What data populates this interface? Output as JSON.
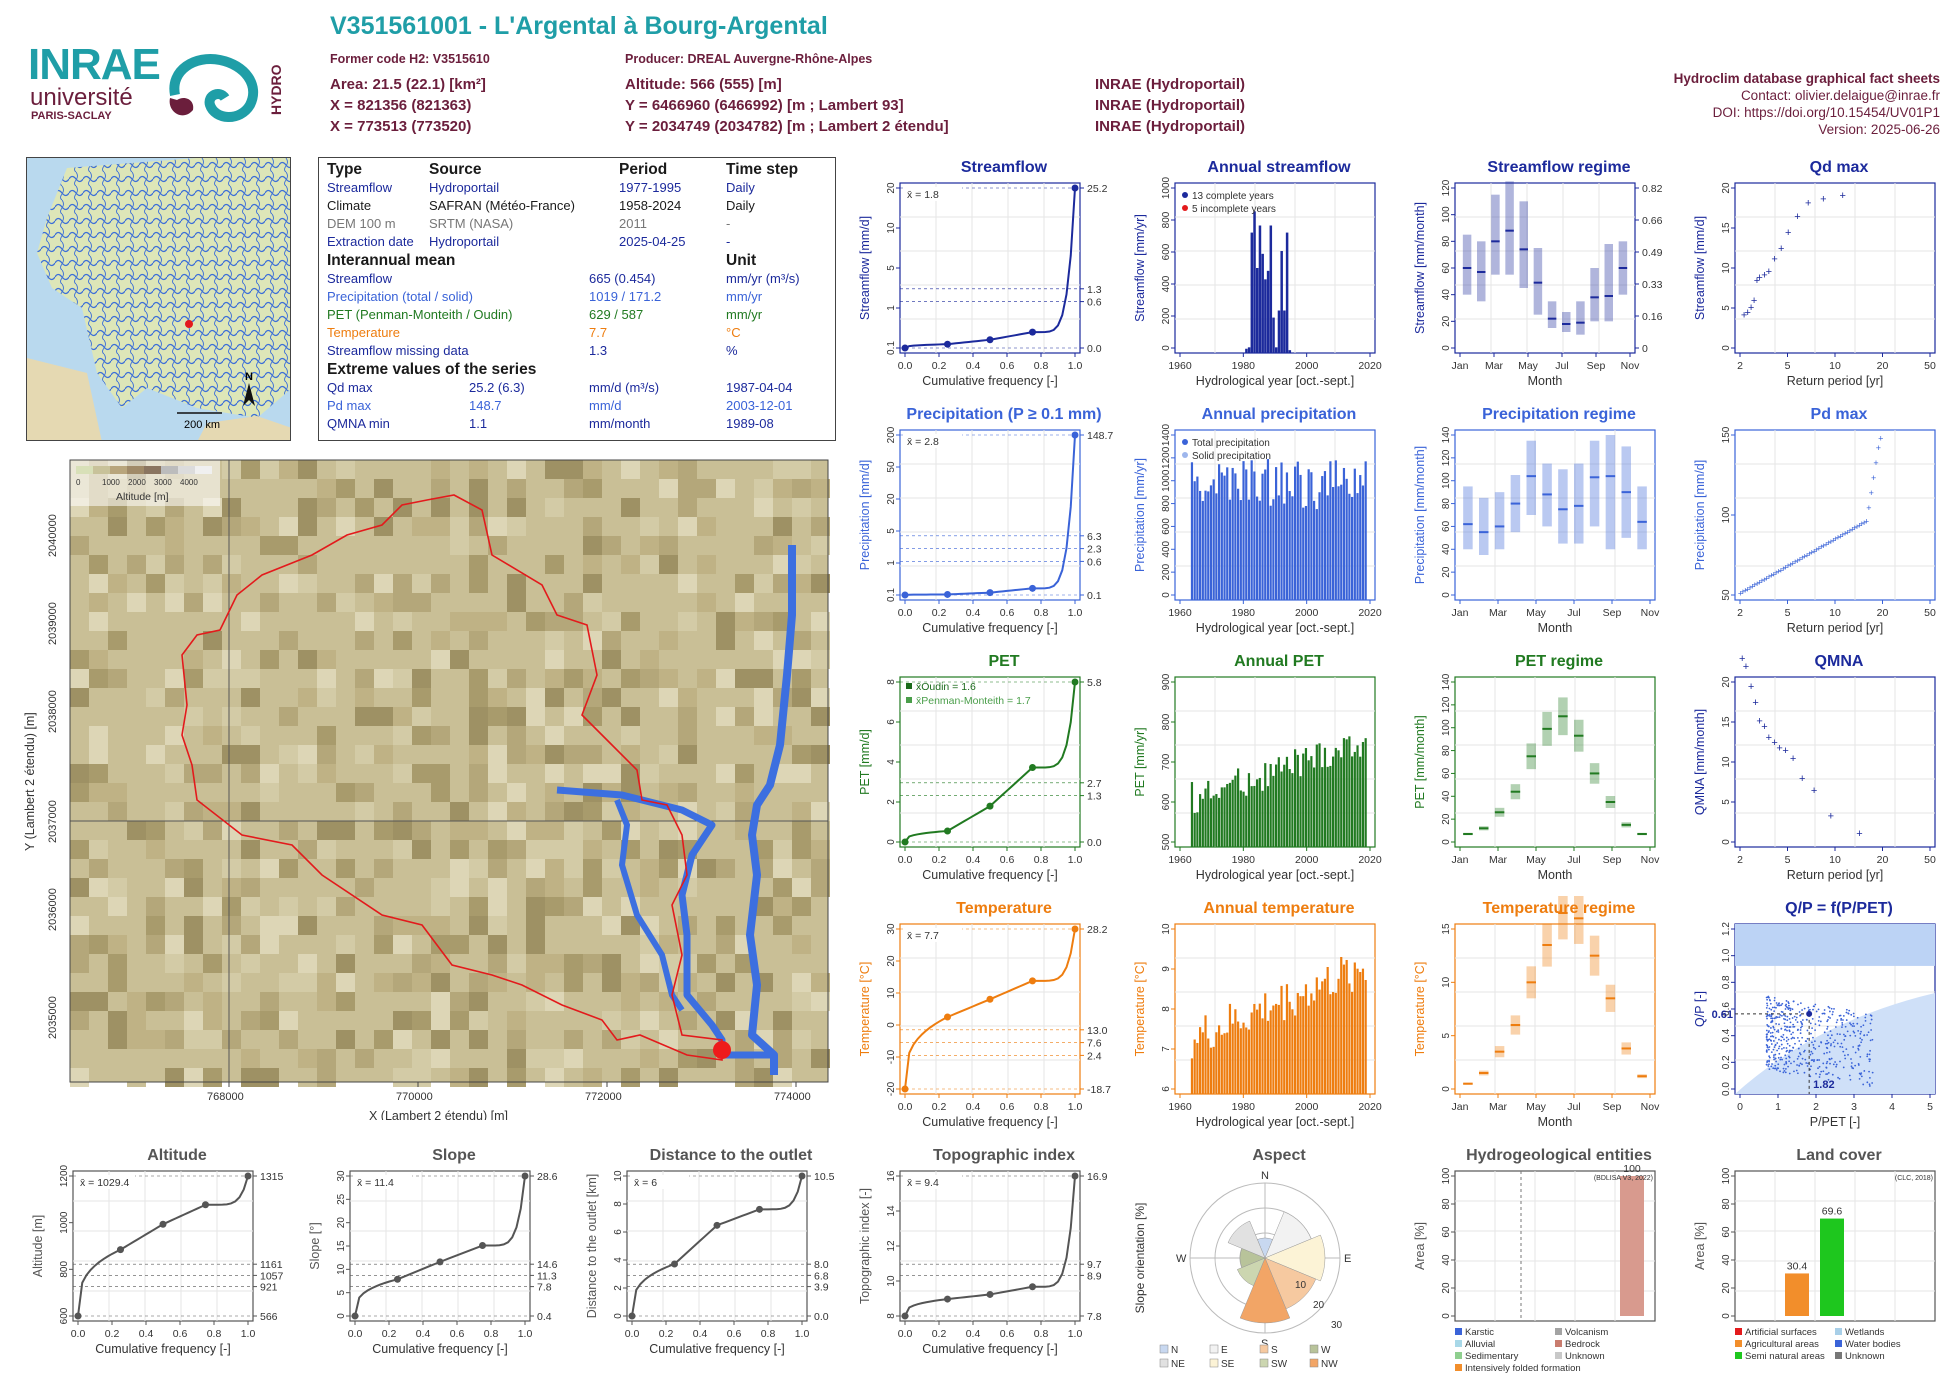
{
  "header": {
    "title": "V351561001 - L'Argental à Bourg-Argental",
    "former_code": "Former code H2: V3515610",
    "producer": "Producer: DREAL Auvergne-Rhône-Alpes",
    "area": "Area: 21.5 (22.1) [km²]",
    "x_l93": "X = 821356 (821363)",
    "x_l2e": "X = 773513 (773520)",
    "altitude": "Altitude: 566 (555) [m]",
    "y_l93": "Y = 6466960 (6466992) [m ; Lambert 93]",
    "y_l2e": "Y = 2034749 (2034782) [m ; Lambert 2 étendu]",
    "src1": "INRAE (Hydroportail)",
    "src2": "INRAE (Hydroportail)",
    "src3": "INRAE (Hydroportail)",
    "right_title": "Hydroclim database graphical fact sheets",
    "contact": "Contact: olivier.delaigue@inrae.fr",
    "doi": "DOI: https://doi.org/10.15454/UV01P1",
    "version": "Version: 2025-06-26"
  },
  "logos": {
    "inrae": "INRAE",
    "universite": "université",
    "paris_saclay": "PARIS-SACLAY",
    "hydro": "HYDRO"
  },
  "colors": {
    "teal": "#1f9ea7",
    "maroon": "#6b1e3c",
    "navy": "#1c2a9c",
    "blue": "#3a63d8",
    "green": "#217a21",
    "orange": "#ee7d0f",
    "gray": "#555555"
  },
  "minimap": {
    "scale_label": "200 km",
    "north": "N"
  },
  "info": {
    "headers": [
      "Type",
      "Source",
      "Period",
      "Time step"
    ],
    "rows": [
      {
        "type": "Streamflow",
        "source": "Hydroportail",
        "period": "1977-1995",
        "step": "Daily",
        "color": "#1c2a9c"
      },
      {
        "type": "Climate",
        "source": "SAFRAN (Météo-France)",
        "period": "1958-2024",
        "step": "Daily",
        "color": "#1a1a1a"
      },
      {
        "type": "DEM 100 m",
        "source": "SRTM (NASA)",
        "period": "2011",
        "step": "-",
        "color": "#777777"
      },
      {
        "type": "Extraction date",
        "source": "Hydroportail",
        "period": "2025-04-25",
        "step": "-",
        "color": "#1c2a9c"
      }
    ],
    "interannual_title": "Interannual mean",
    "unit_title": "Unit",
    "interannual": [
      {
        "label": "Streamflow",
        "value": "665 (0.454)",
        "unit": "mm/yr (m³/s)",
        "color": "#1c2a9c"
      },
      {
        "label": "Precipitation (total / solid)",
        "value": "1019 / 171.2",
        "unit": "mm/yr",
        "color": "#3a63d8"
      },
      {
        "label": "PET (Penman-Monteith / Oudin)",
        "value": "629 / 587",
        "unit": "mm/yr",
        "color": "#217a21"
      },
      {
        "label": "Temperature",
        "value": "7.7",
        "unit": "°C",
        "color": "#ee7d0f"
      },
      {
        "label": "Streamflow missing data",
        "value": "1.3",
        "unit": "%",
        "color": "#1c2a9c"
      }
    ],
    "extreme_title": "Extreme values of the series",
    "extremes": [
      {
        "label": "Qd max",
        "value": "25.2 (6.3)",
        "unit": "mm/d (m³/s)",
        "date": "1987-04-04",
        "color": "#1c2a9c"
      },
      {
        "label": "Pd max",
        "value": "148.7",
        "unit": "mm/d",
        "date": "2003-12-01",
        "color": "#3a63d8"
      },
      {
        "label": "QMNA min",
        "value": "1.1",
        "unit": "mm/month",
        "date": "1989-08",
        "color": "#1c2a9c"
      }
    ]
  },
  "bigmap": {
    "legend_title": "Altitude [m]",
    "legend_ticks": [
      "0",
      "1000",
      "2000",
      "3000",
      "4000"
    ],
    "xlabel": "X (Lambert 2 étendu) [m]",
    "ylabel": "Y (Lambert 2 étendu) [m]",
    "xticks": [
      "768000",
      "770000",
      "772000",
      "774000"
    ],
    "yticks": [
      "2040000",
      "2039000",
      "2038000",
      "2037000",
      "2036000",
      "2035000"
    ]
  },
  "chart_data": [
    {
      "type": "line",
      "title": "Streamflow",
      "xlabel": "Cumulative frequency [-]",
      "ylabel": "Streamflow [mm/d]",
      "mean": "x̄ = 1.8",
      "right_ticks": [
        "25.2",
        "1.3",
        "0.6",
        "0.0"
      ],
      "left_ticks": [
        "0.1",
        "1",
        "5",
        "10",
        "20"
      ],
      "x": [
        0,
        0.25,
        0.5,
        0.75,
        1.0
      ],
      "y": [
        0.0,
        0.6,
        1.3,
        2.5,
        25.2
      ],
      "xticks": [
        "0.0",
        "0.2",
        "0.4",
        "0.6",
        "0.8",
        "1.0"
      ]
    },
    {
      "type": "bar",
      "title": "Annual streamflow",
      "xlabel": "Hydrological year [oct.-sept.]",
      "ylabel": "Streamflow [mm/yr]",
      "legend": [
        "13 complete years",
        "5 incomplete years"
      ],
      "xticks": [
        "1960",
        "1980",
        "2000",
        "2020"
      ],
      "yticks": [
        "0",
        "200",
        "400",
        "600",
        "800",
        "1000"
      ],
      "ylim": [
        0,
        1200
      ],
      "x": [
        1977,
        1978,
        1979,
        1980,
        1981,
        1982,
        1983,
        1984,
        1985,
        1986,
        1987,
        1988,
        1989,
        1990,
        1991,
        1992,
        1993,
        1994,
        1995
      ],
      "values": [
        0,
        0,
        30,
        40,
        850,
        1000,
        600,
        900,
        700,
        520,
        580,
        900,
        250,
        40,
        300,
        720,
        300,
        850,
        20
      ]
    },
    {
      "type": "bar",
      "title": "Streamflow regime",
      "xlabel": "Month",
      "ylabel": "Streamflow [mm/month]",
      "categories": [
        "Jan",
        "Feb",
        "Mar",
        "Apr",
        "May",
        "Jun",
        "Jul",
        "Aug",
        "Sep",
        "Oct",
        "Nov",
        "Dec"
      ],
      "xticks": [
        "Jan",
        "Mar",
        "May",
        "Jul",
        "Sep",
        "Nov"
      ],
      "yticks": [
        "0",
        "20",
        "40",
        "60",
        "80",
        "100",
        "120"
      ],
      "right_ticks": [
        "0.82",
        "0.66",
        "0.49",
        "0.33",
        "0.16",
        "0"
      ],
      "values": [
        60,
        57,
        80,
        88,
        74,
        49,
        22,
        18,
        19,
        38,
        39,
        60
      ],
      "low": [
        40,
        35,
        55,
        55,
        45,
        25,
        15,
        12,
        10,
        20,
        20,
        40
      ],
      "high": [
        85,
        80,
        115,
        125,
        110,
        75,
        35,
        27,
        35,
        60,
        78,
        80
      ]
    },
    {
      "type": "scatter",
      "title": "Qd max",
      "xlabel": "Return period [yr]",
      "ylabel": "Streamflow [mm/d]",
      "xticks": [
        "2",
        "5",
        "10",
        "20",
        "50"
      ],
      "yticks": [
        "0",
        "5",
        "10",
        "15",
        "20"
      ],
      "x": [
        1.1,
        1.2,
        1.3,
        1.4,
        1.5,
        1.6,
        1.8,
        2.0,
        2.3,
        2.7,
        3.2,
        4.0,
        5.2,
        7.5,
        12
      ],
      "values": [
        4.2,
        4.5,
        5.1,
        6.0,
        8.5,
        8.9,
        9.2,
        9.6,
        11.2,
        12.5,
        14.5,
        16.5,
        18.2,
        18.7,
        19.1
      ]
    },
    {
      "type": "line",
      "title": "Precipitation (P ≥ 0.1 mm)",
      "xlabel": "Cumulative frequency [-]",
      "ylabel": "Precipitation [mm/d]",
      "mean": "x̄ = 2.8",
      "right_ticks": [
        "148.7",
        "6.3",
        "2.3",
        "0.6",
        "0.1"
      ],
      "left_ticks": [
        "0.1",
        "1",
        "5",
        "20",
        "50",
        "200"
      ],
      "x": [
        0,
        0.25,
        0.5,
        0.75,
        1.0
      ],
      "y": [
        0.1,
        0.6,
        2.3,
        6.3,
        148.7
      ],
      "xticks": [
        "0.0",
        "0.2",
        "0.4",
        "0.6",
        "0.8",
        "1.0"
      ]
    },
    {
      "type": "bar",
      "title": "Annual precipitation",
      "xlabel": "Hydrological year [oct.-sept.]",
      "ylabel": "Precipitation [mm/yr]",
      "legend": [
        "Total precipitation",
        "Solid precipitation"
      ],
      "xticks": [
        "1960",
        "1980",
        "2000",
        "2020"
      ],
      "yticks": [
        "0",
        "200",
        "400",
        "600",
        "800",
        "1000",
        "1200",
        "1400"
      ],
      "ylim": [
        0,
        1500
      ]
    },
    {
      "type": "bar",
      "title": "Precipitation regime",
      "xlabel": "Month",
      "ylabel": "Precipitation [mm/month]",
      "categories": [
        "Jan",
        "Feb",
        "Mar",
        "Apr",
        "May",
        "Jun",
        "Jul",
        "Aug",
        "Sep",
        "Oct",
        "Nov",
        "Dec"
      ],
      "xticks": [
        "Jan",
        "Mar",
        "May",
        "Jul",
        "Sep",
        "Nov"
      ],
      "yticks": [
        "0",
        "20",
        "40",
        "60",
        "80",
        "100",
        "120",
        "140"
      ],
      "values": [
        62,
        55,
        60,
        80,
        104,
        88,
        75,
        78,
        103,
        104,
        90,
        64
      ],
      "low": [
        40,
        35,
        40,
        55,
        70,
        60,
        45,
        45,
        60,
        40,
        50,
        40
      ],
      "high": [
        95,
        85,
        90,
        105,
        135,
        115,
        110,
        115,
        135,
        140,
        130,
        95
      ]
    },
    {
      "type": "scatter",
      "title": "Pd max",
      "xlabel": "Return period [yr]",
      "ylabel": "Precipitation [mm/d]",
      "xticks": [
        "2",
        "5",
        "10",
        "20",
        "50"
      ],
      "yticks": [
        "50",
        "100",
        "150"
      ],
      "points_note": "dense curve 30 to 148.7"
    },
    {
      "type": "line",
      "title": "PET",
      "xlabel": "Cumulative frequency [-]",
      "ylabel": "PET [mm/d]",
      "mean_oudin": "x̄Oudin = 1.6",
      "mean_pm": "x̄Penman-Monteith = 1.7",
      "right_ticks": [
        "5.8",
        "2.7",
        "1.3",
        "0.0"
      ],
      "yticks": [
        "0",
        "2",
        "4",
        "6",
        "8"
      ],
      "x": [
        0,
        0.25,
        0.5,
        0.75,
        1.0
      ],
      "y": [
        0,
        0.4,
        1.3,
        2.7,
        5.8
      ],
      "xticks": [
        "0.0",
        "0.2",
        "0.4",
        "0.6",
        "0.8",
        "1.0"
      ]
    },
    {
      "type": "bar",
      "title": "Annual PET",
      "xlabel": "Hydrological year [oct.-sept.]",
      "ylabel": "PET [mm/yr]",
      "xticks": [
        "1960",
        "1980",
        "2000",
        "2020"
      ],
      "yticks": [
        "500",
        "600",
        "700",
        "800",
        "900"
      ],
      "ylim": [
        450,
        920
      ]
    },
    {
      "type": "bar",
      "title": "PET regime",
      "xlabel": "Month",
      "ylabel": "PET [mm/month]",
      "categories": [
        "Jan",
        "Feb",
        "Mar",
        "Apr",
        "May",
        "Jun",
        "Jul",
        "Aug",
        "Sep",
        "Oct",
        "Nov",
        "Dec"
      ],
      "xticks": [
        "Jan",
        "Mar",
        "May",
        "Jul",
        "Sep",
        "Nov"
      ],
      "yticks": [
        "0",
        "20",
        "40",
        "60",
        "80",
        "100",
        "120",
        "140"
      ],
      "values": [
        7,
        12,
        26,
        44,
        75,
        99,
        110,
        93,
        60,
        35,
        15,
        7
      ]
    },
    {
      "type": "scatter",
      "title": "QMNA",
      "xlabel": "Return period [yr]",
      "ylabel": "QMNA [mm/month]",
      "xticks": [
        "2",
        "5",
        "10",
        "20",
        "50"
      ],
      "yticks": [
        "0",
        "5",
        "10",
        "15",
        "20"
      ],
      "x": [
        1.05,
        1.15,
        1.3,
        1.45,
        1.6,
        1.8,
        2.0,
        2.3,
        2.6,
        3.0,
        3.6,
        4.5,
        6.0,
        9.0,
        18
      ],
      "values": [
        23,
        22,
        19.5,
        17.5,
        15.2,
        14.5,
        13.1,
        12.5,
        11.8,
        11.5,
        10.5,
        8,
        6.5,
        3.3,
        1.1
      ]
    },
    {
      "type": "line",
      "title": "Temperature",
      "xlabel": "Cumulative frequency [-]",
      "ylabel": "Temperature [°C]",
      "mean": "x̄ = 7.7",
      "right_ticks": [
        "28.2",
        "13.0",
        "7.6",
        "2.4",
        "-18.7"
      ],
      "yticks": [
        "-20",
        "-10",
        "0",
        "10",
        "20",
        "30"
      ],
      "x": [
        0,
        0.25,
        0.5,
        0.75,
        1.0
      ],
      "y": [
        -18.7,
        2.4,
        7.6,
        13.0,
        28.2
      ],
      "xticks": [
        "0.0",
        "0.2",
        "0.4",
        "0.6",
        "0.8",
        "1.0"
      ]
    },
    {
      "type": "bar",
      "title": "Annual temperature",
      "xlabel": "Hydrological year [oct.-sept.]",
      "ylabel": "Temperature [°C]",
      "xticks": [
        "1960",
        "1980",
        "2000",
        "2020"
      ],
      "yticks": [
        "6",
        "7",
        "8",
        "9",
        "10"
      ],
      "ylim": [
        5.2,
        10.4
      ]
    },
    {
      "type": "bar",
      "title": "Temperature regime",
      "xlabel": "Month",
      "ylabel": "Temperature [°C]",
      "categories": [
        "Jan",
        "Feb",
        "Mar",
        "Apr",
        "May",
        "Jun",
        "Jul",
        "Aug",
        "Sep",
        "Oct",
        "Nov",
        "Dec"
      ],
      "xticks": [
        "Jan",
        "Mar",
        "May",
        "Jul",
        "Sep",
        "Nov"
      ],
      "yticks": [
        "0",
        "5",
        "10",
        "15"
      ],
      "values": [
        0.5,
        1.5,
        3.5,
        6,
        10,
        13.5,
        16.5,
        16,
        12.5,
        8.5,
        3.8,
        1.2
      ]
    },
    {
      "type": "scatter",
      "title": "Q/P = f(P/PET)",
      "xlabel": "P/PET [-]",
      "ylabel": "Q/P [-]",
      "xticks": [
        "0",
        "1",
        "2",
        "3",
        "4",
        "5"
      ],
      "yticks": [
        "0.0",
        "0.2",
        "0.4",
        "0.6",
        "0.8",
        "1.0",
        "1.2"
      ],
      "annot_x": "1.82",
      "annot_y": "0.61"
    },
    {
      "type": "line",
      "title": "Altitude",
      "xlabel": "Cumulative frequency [-]",
      "ylabel": "Altitude [m]",
      "mean": "x̄ = 1029.4",
      "right_ticks": [
        "1315",
        "1161",
        "1057",
        "921",
        "566"
      ],
      "yticks": [
        "600",
        "800",
        "1000",
        "1200"
      ],
      "x": [
        0,
        0.25,
        0.5,
        0.75,
        1.0
      ],
      "y": [
        566,
        921,
        1057,
        1161,
        1315
      ],
      "xticks": [
        "0.0",
        "0.2",
        "0.4",
        "0.6",
        "0.8",
        "1.0"
      ]
    },
    {
      "type": "line",
      "title": "Slope",
      "xlabel": "Cumulative frequency [-]",
      "ylabel": "Slope [°]",
      "mean": "x̄ = 11.4",
      "right_ticks": [
        "28.6",
        "14.6",
        "11.3",
        "7.8",
        "0.4"
      ],
      "yticks": [
        "0",
        "5",
        "10",
        "15",
        "20",
        "25",
        "30"
      ],
      "x": [
        0,
        0.25,
        0.5,
        0.75,
        1.0
      ],
      "y": [
        0.4,
        7.8,
        11.3,
        14.6,
        28.6
      ],
      "xticks": [
        "0.0",
        "0.2",
        "0.4",
        "0.6",
        "0.8",
        "1.0"
      ]
    },
    {
      "type": "line",
      "title": "Distance to the outlet",
      "xlabel": "Cumulative frequency [-]",
      "ylabel": "Distance to the outlet [km]",
      "mean": "x̄ = 6",
      "right_ticks": [
        "10.5",
        "8.0",
        "6.8",
        "3.9",
        "0.0"
      ],
      "yticks": [
        "0",
        "2",
        "4",
        "6",
        "8",
        "10"
      ],
      "x": [
        0,
        0.25,
        0.5,
        0.75,
        1.0
      ],
      "y": [
        0,
        3.9,
        6.8,
        8.0,
        10.5
      ],
      "xticks": [
        "0.0",
        "0.2",
        "0.4",
        "0.6",
        "0.8",
        "1.0"
      ]
    },
    {
      "type": "line",
      "title": "Topographic index",
      "xlabel": "Cumulative frequency [-]",
      "ylabel": "Topographic index [-]",
      "mean": "x̄ = 9.4",
      "right_ticks": [
        "16.9",
        "9.7",
        "8.9",
        "7.8"
      ],
      "yticks": [
        "8",
        "10",
        "12",
        "14",
        "16"
      ],
      "x": [
        0,
        0.25,
        0.5,
        0.75,
        1.0
      ],
      "y": [
        7.8,
        8.9,
        9.2,
        9.7,
        16.9
      ],
      "xticks": [
        "0.0",
        "0.2",
        "0.4",
        "0.6",
        "0.8",
        "1.0"
      ]
    },
    {
      "type": "pie",
      "title": "Aspect",
      "ylabel": "Slope orientation [%]",
      "directions": [
        "N",
        "E",
        "S",
        "W"
      ],
      "ring_labels": [
        "10",
        "20",
        "30"
      ],
      "legend": [
        "N",
        "E",
        "S",
        "W",
        "NE",
        "SE",
        "SW",
        "NW"
      ]
    },
    {
      "type": "bar",
      "title": "Hydrogeological entities",
      "ylabel": "Area [%]",
      "source": "(BDLISA V3, 2022)",
      "yticks": [
        "0",
        "20",
        "40",
        "60",
        "80",
        "100"
      ],
      "categories": [
        "Bedrock"
      ],
      "values": [
        100
      ],
      "value_label": "100",
      "legend": [
        "Karstic",
        "Volcanism",
        "Alluvial",
        "Bedrock",
        "Sedimentary",
        "Unknown",
        "Intensively folded formation"
      ]
    },
    {
      "type": "bar",
      "title": "Land cover",
      "ylabel": "Area [%]",
      "source": "(CLC, 2018)",
      "yticks": [
        "0",
        "20",
        "40",
        "60",
        "80",
        "100"
      ],
      "categories": [
        "Agricultural areas",
        "Semi natural areas"
      ],
      "values": [
        30.4,
        69.6
      ],
      "value_labels": [
        "30.4",
        "69.6"
      ],
      "legend": [
        "Artificial surfaces",
        "Wetlands",
        "Agricultural areas",
        "Water bodies",
        "Semi natural areas",
        "Unknown"
      ]
    }
  ]
}
